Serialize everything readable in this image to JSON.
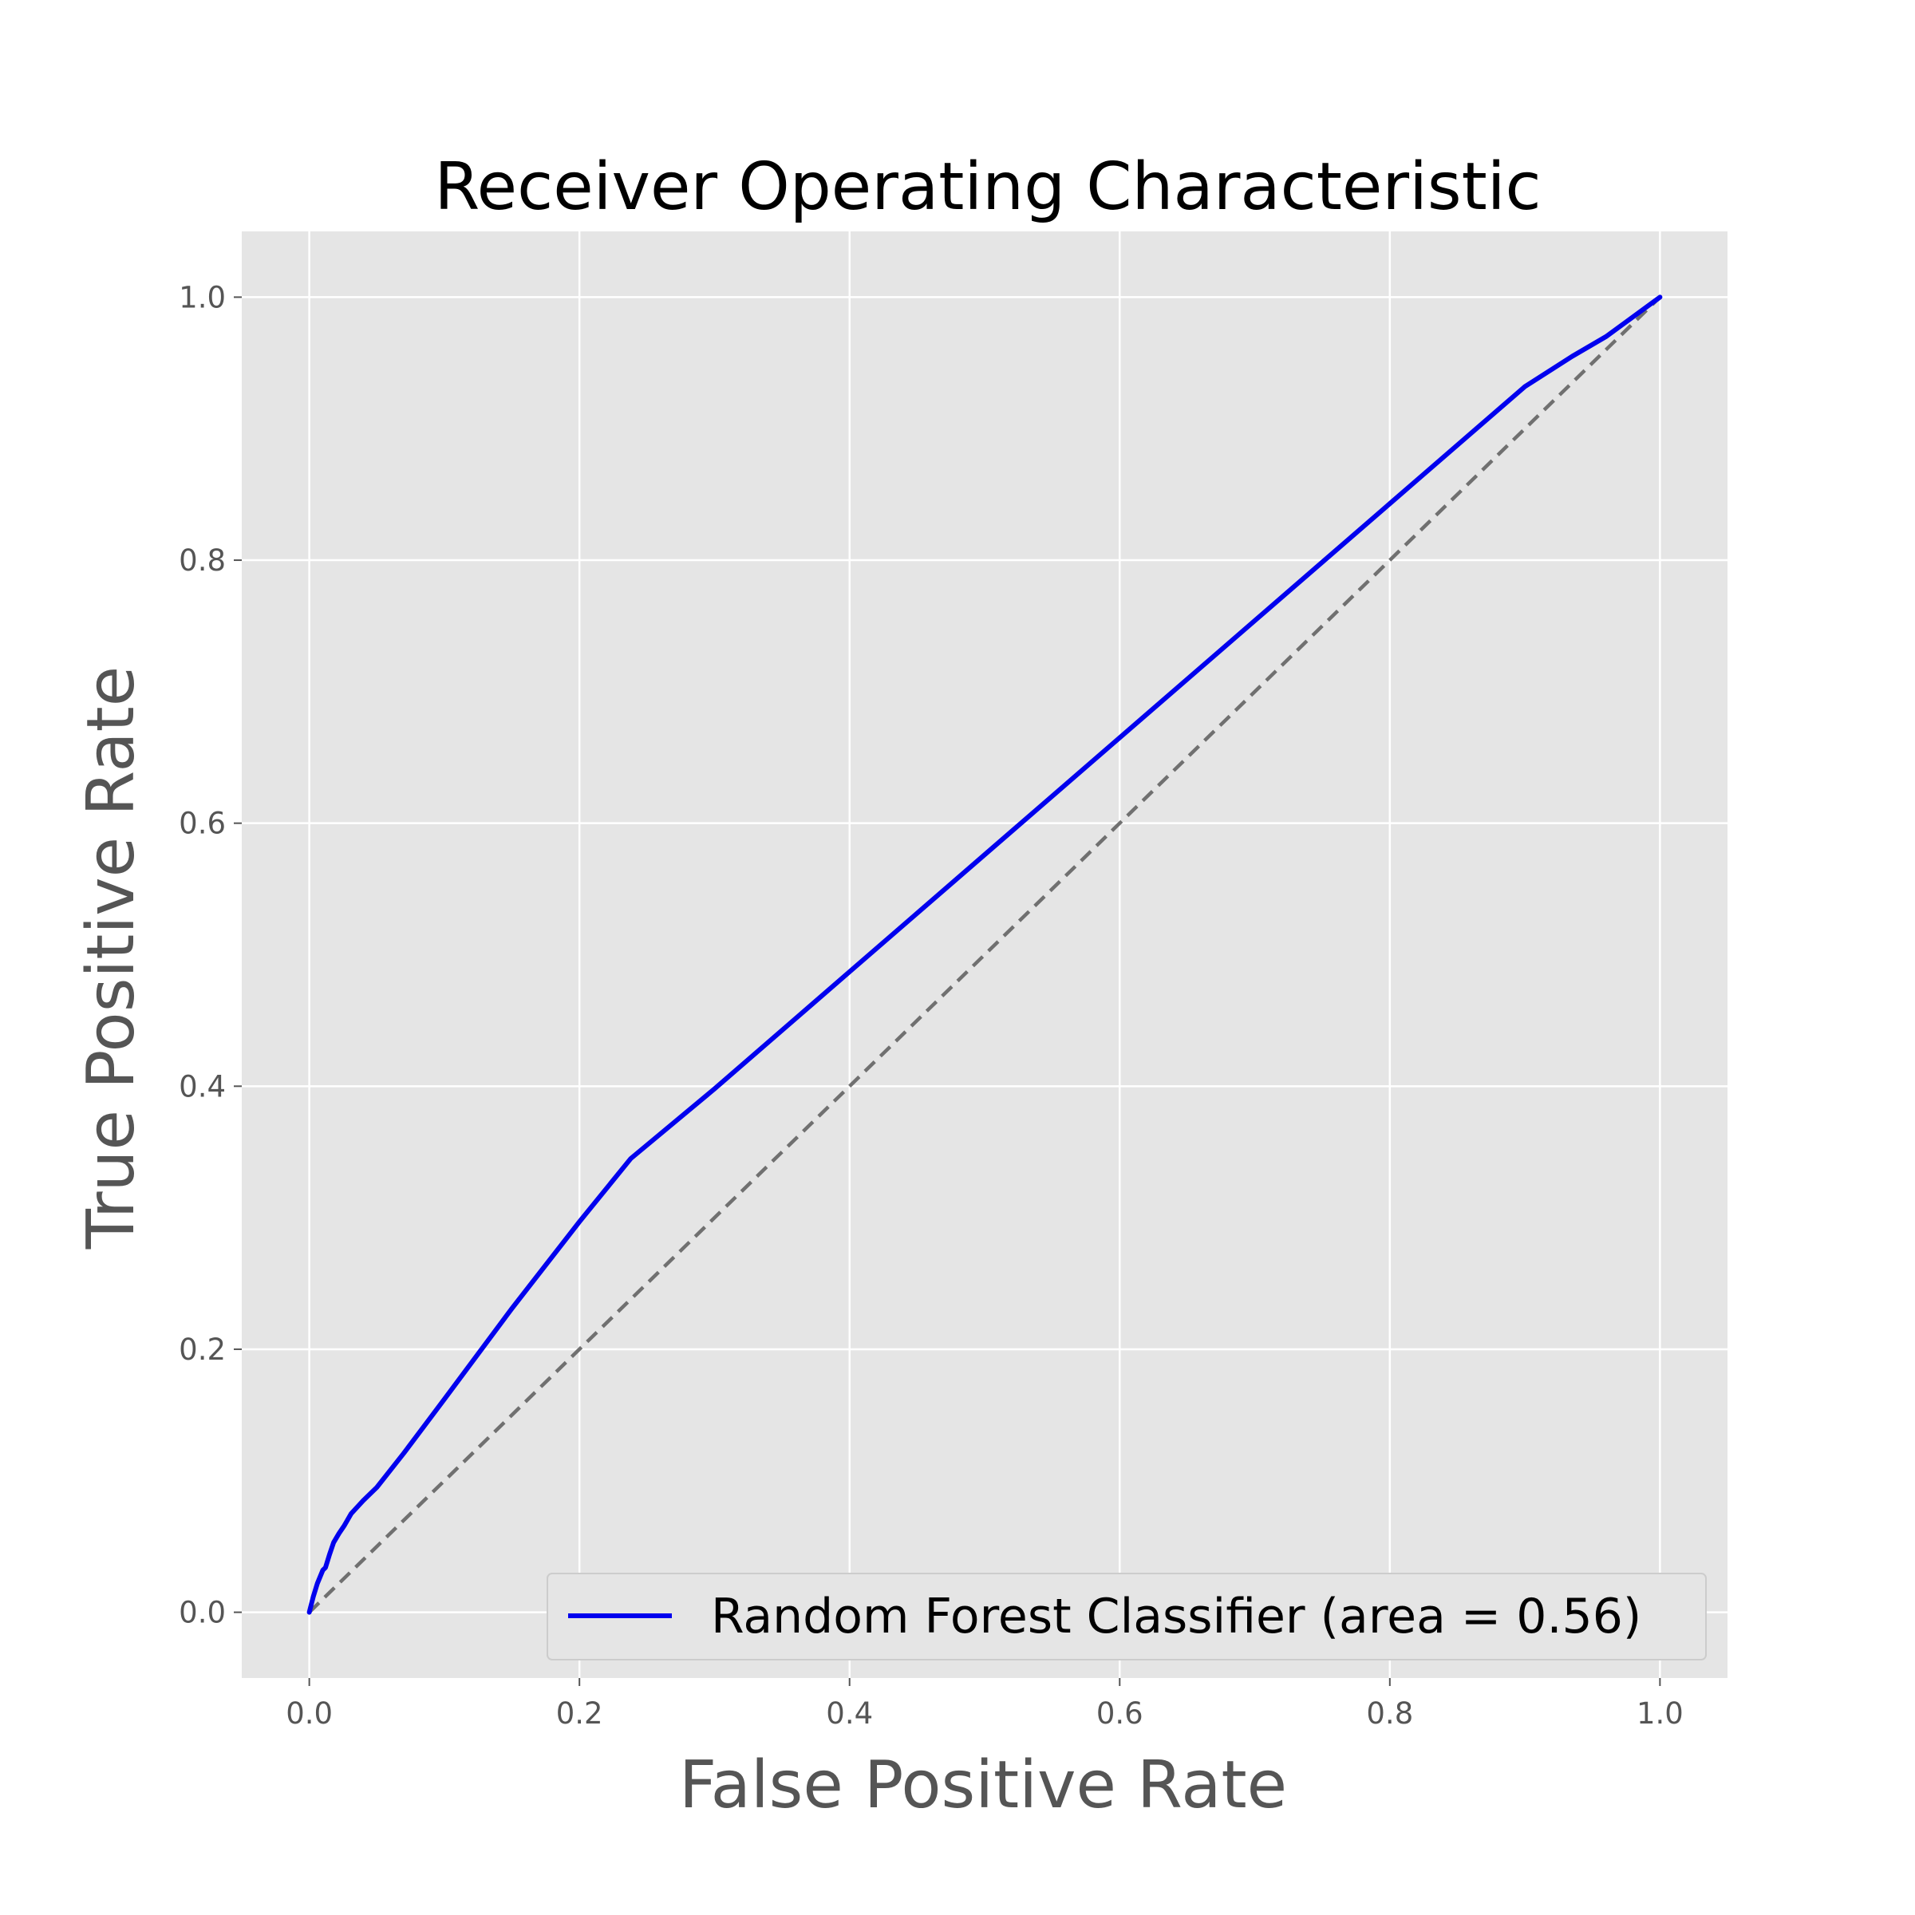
{
  "chart_data": {
    "type": "line",
    "title": "Receiver Operating Characteristic",
    "xlabel": "False Positive Rate",
    "ylabel": "True Positive Rate",
    "xlim": [
      -0.05,
      1.05
    ],
    "ylim": [
      -0.05,
      1.05
    ],
    "xticks": [
      0.0,
      0.2,
      0.4,
      0.6,
      0.8,
      1.0
    ],
    "yticks": [
      0.0,
      0.2,
      0.4,
      0.6,
      0.8,
      1.0
    ],
    "xtick_labels": [
      "0.0",
      "0.2",
      "0.4",
      "0.6",
      "0.8",
      "1.0"
    ],
    "ytick_labels": [
      "0.0",
      "0.2",
      "0.4",
      "0.6",
      "0.8",
      "1.0"
    ],
    "grid": true,
    "legend_position": "lower-right",
    "series": [
      {
        "name": "Random Forest Classifier (area = 0.56)",
        "color": "#0000ee",
        "style": "solid",
        "x": [
          0.0,
          0.003,
          0.006,
          0.01,
          0.012,
          0.015,
          0.018,
          0.022,
          0.026,
          0.031,
          0.04,
          0.05,
          0.07,
          0.1,
          0.15,
          0.2,
          0.238,
          0.3,
          0.4,
          0.5,
          0.6,
          0.7,
          0.8,
          0.9,
          0.935,
          0.96,
          1.0
        ],
        "y": [
          0.0,
          0.012,
          0.022,
          0.032,
          0.034,
          0.044,
          0.053,
          0.06,
          0.066,
          0.075,
          0.085,
          0.095,
          0.121,
          0.162,
          0.231,
          0.297,
          0.345,
          0.398,
          0.487,
          0.576,
          0.665,
          0.754,
          0.843,
          0.932,
          0.955,
          0.97,
          1.0
        ]
      },
      {
        "name": "",
        "color": "#707070",
        "style": "dashed",
        "x": [
          0.0,
          1.0
        ],
        "y": [
          0.0,
          1.0
        ]
      }
    ]
  }
}
